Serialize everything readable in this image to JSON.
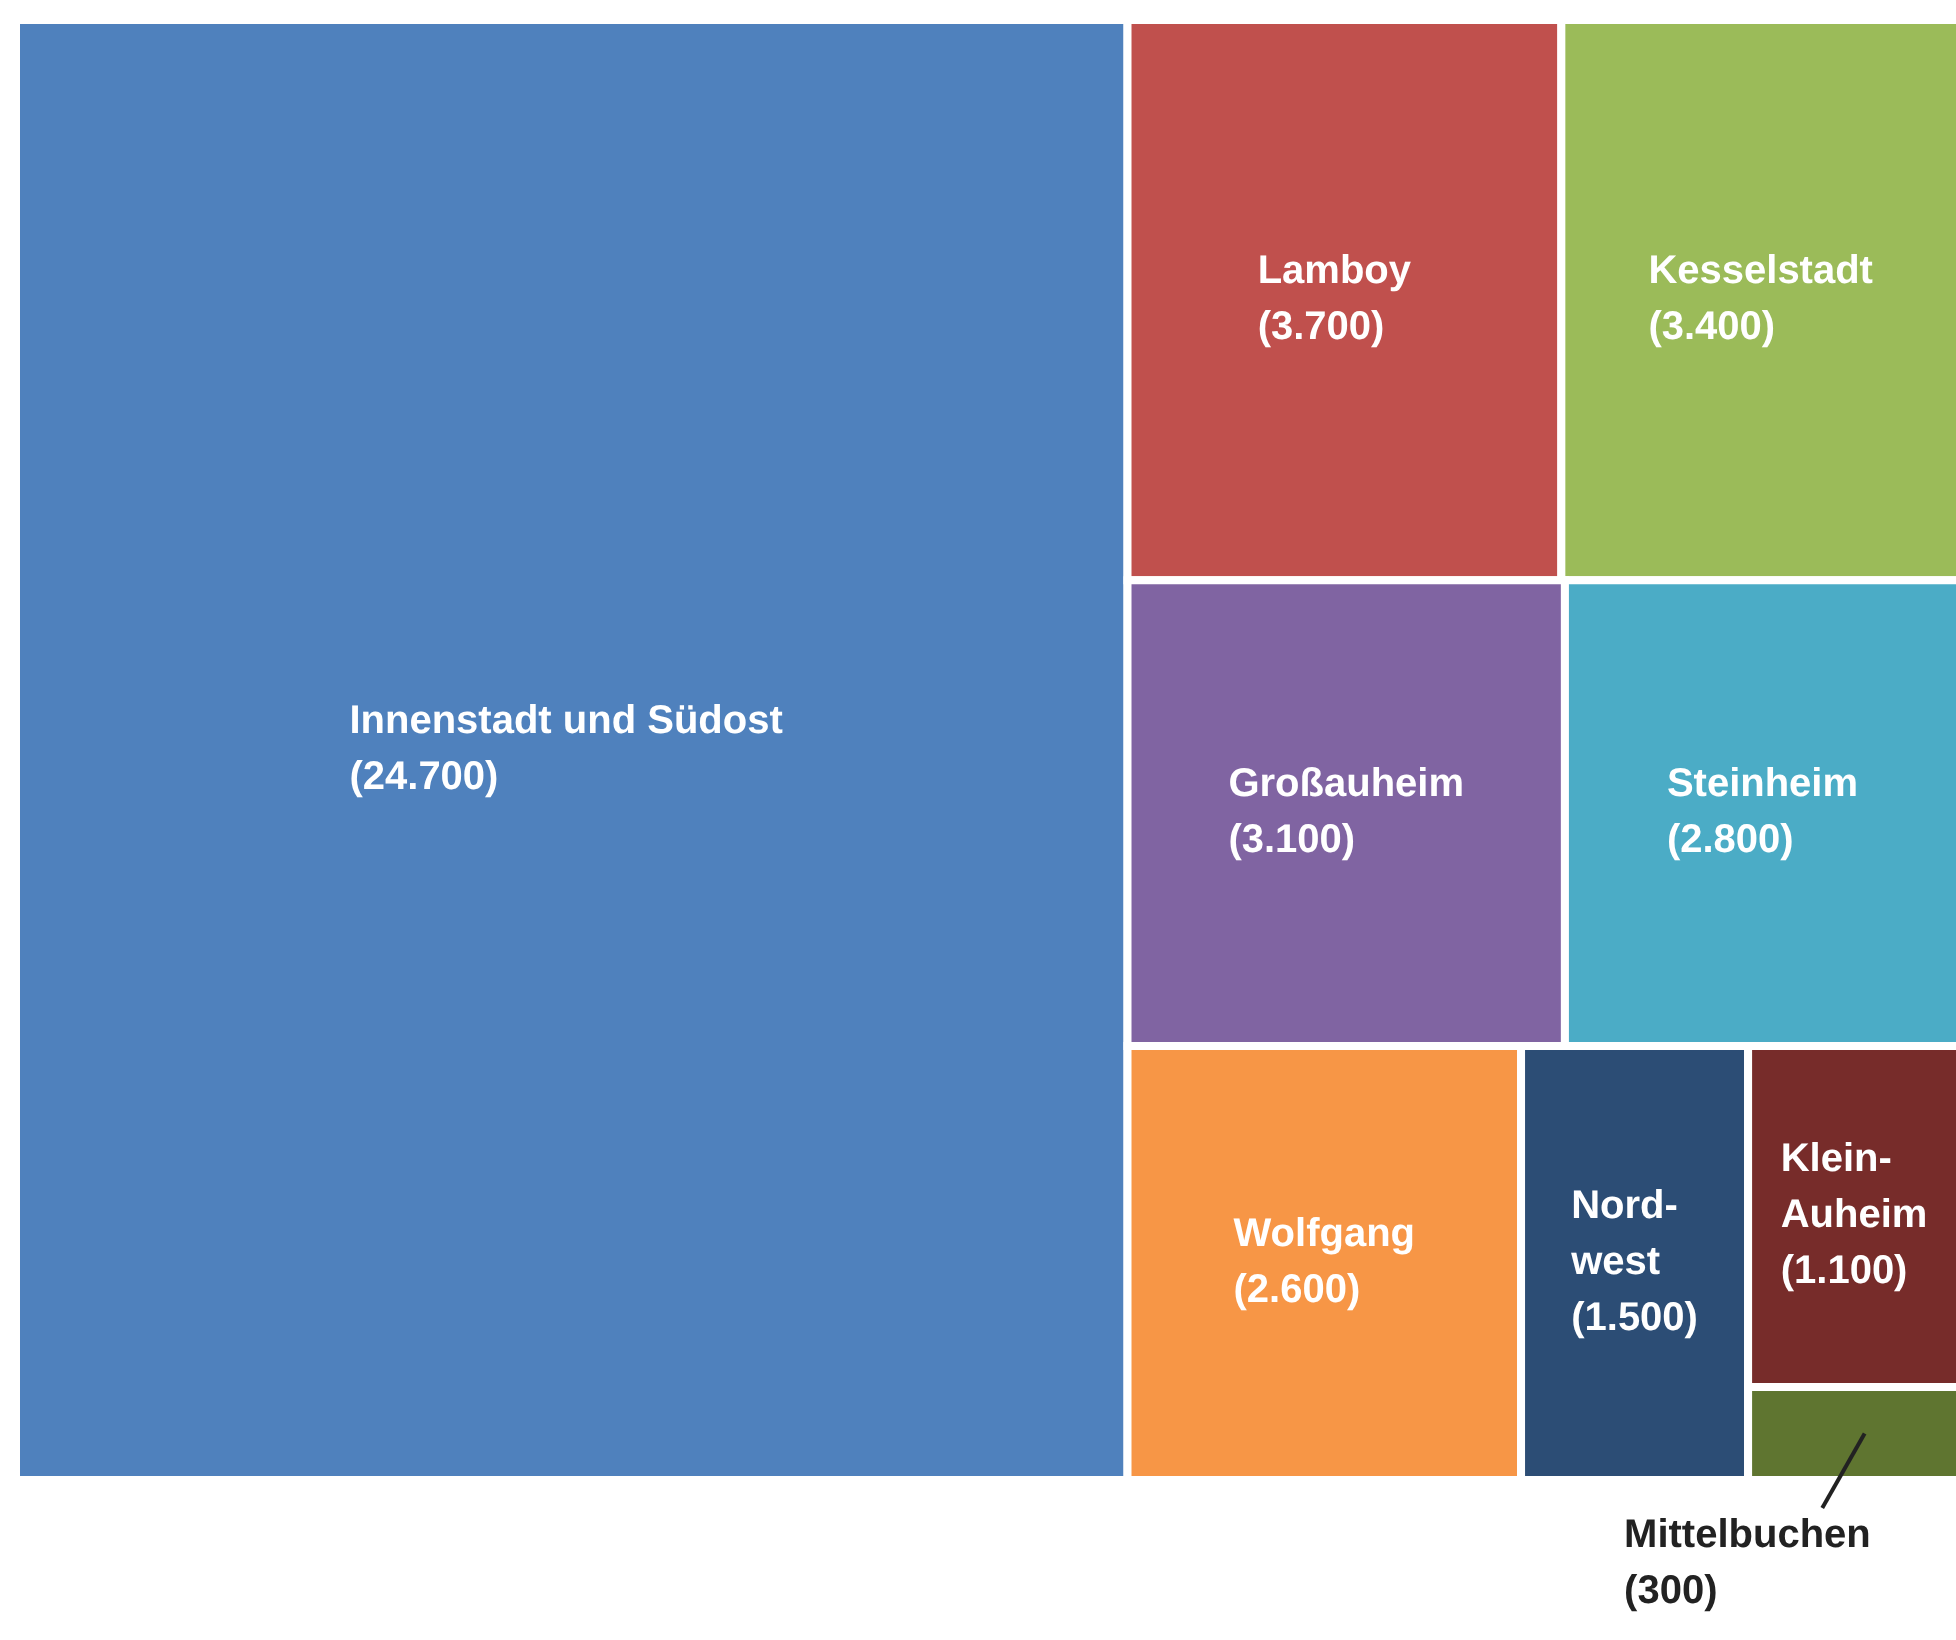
{
  "chart_data": {
    "type": "other",
    "categories": [
      "Innenstadt und Südost",
      "Lamboy",
      "Kesselstadt",
      "Großauheim",
      "Steinheim",
      "Wolfgang",
      "Nord-\nwest",
      "Klein-\nAuheim",
      "Mittelbuchen"
    ],
    "values": [
      24700,
      3700,
      3400,
      3100,
      2800,
      2600,
      1500,
      1100,
      300
    ],
    "value_labels": [
      "(24.700)",
      "(3.700)",
      "(3.400)",
      "(3.100)",
      "(2.800)",
      "(2.600)",
      "(1.500)",
      "(1.100)",
      "(300)"
    ],
    "colors": [
      "#4f81bd",
      "#c0504d",
      "#9bbb59",
      "#8064a2",
      "#4bacc6",
      "#f79646",
      "#2c4d75",
      "#772c2a",
      "#5f7530"
    ]
  }
}
